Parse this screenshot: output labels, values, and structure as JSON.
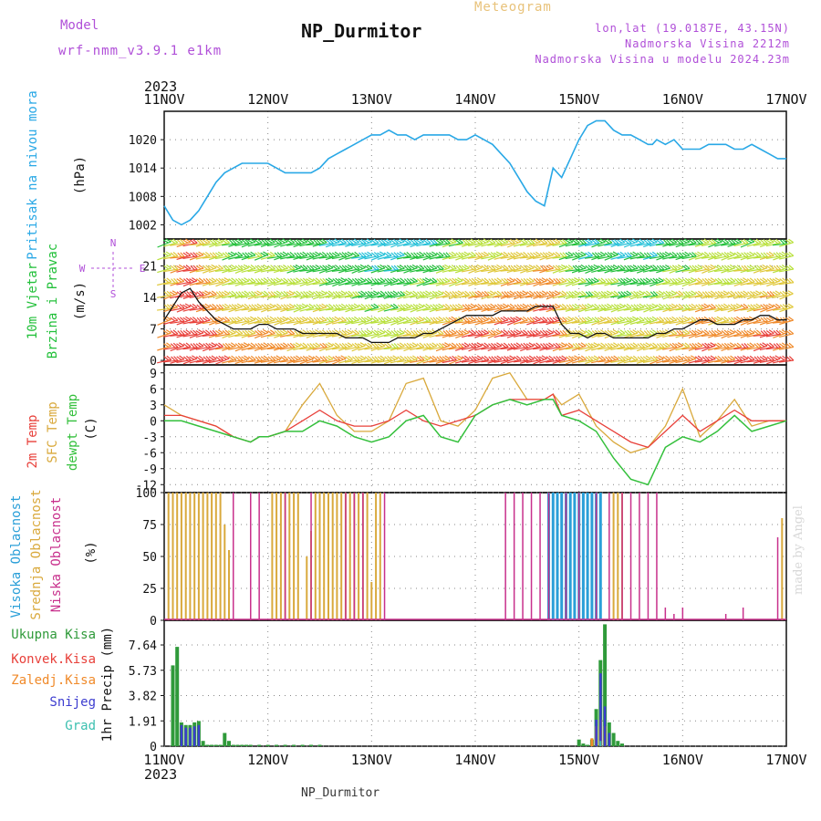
{
  "header": {
    "model_label": "Model",
    "model_version": "wrf-nmm_v3.9.1 e1km",
    "meteogram_label": "Meteogram",
    "station": "NP_Durmitor",
    "lonlat": "lon,lat (19.0187E, 43.15N)",
    "elevation": "Nadmorska Visina 2212m",
    "model_elevation": "Nadmorska Visina u modelu 2024.23m",
    "footer_station": "NP_Durmitor",
    "made_by": "made by Angel"
  },
  "axis": {
    "year": "2023",
    "date_ticks": [
      "11NOV",
      "12NOV",
      "13NOV",
      "14NOV",
      "15NOV",
      "16NOV",
      "17NOV"
    ]
  },
  "colors": {
    "pressure": "#29a8e6",
    "temp2m": "#e8403a",
    "sfc": "#d9a93c",
    "dew": "#34c03c",
    "high_cloud": "#2a9fd8",
    "mid_cloud": "#d9a93c",
    "low_cloud": "#c8308c",
    "total_precip": "#2f9a3a",
    "conv_precip": "#e8403a",
    "frz_precip": "#f08a2a",
    "snow": "#3c3ccf",
    "hail": "#3cc0b0",
    "axis_pink": "#c8308c",
    "wind_label": "#22c03a",
    "wind_dir_label": "#b04fd8"
  },
  "chart_data": [
    {
      "type": "line",
      "title": "",
      "ylabel_parts": [
        "Pritisak na nivou mora",
        "(hPa)"
      ],
      "yticks": [
        1002,
        1008,
        1014,
        1020
      ],
      "ylim": [
        999,
        1026
      ],
      "xlim": [
        0,
        144
      ],
      "series": [
        {
          "name": "Pritisak na nivou mora",
          "x": [
            0,
            2,
            4,
            6,
            8,
            10,
            12,
            14,
            16,
            18,
            20,
            22,
            24,
            26,
            28,
            30,
            32,
            34,
            36,
            38,
            40,
            42,
            44,
            46,
            48,
            50,
            52,
            54,
            56,
            58,
            60,
            62,
            64,
            66,
            68,
            70,
            72,
            74,
            76,
            78,
            80,
            82,
            84,
            86,
            88,
            90,
            92,
            94,
            96,
            98,
            100,
            102,
            104,
            106,
            108,
            110,
            112,
            113,
            114,
            116,
            118,
            120,
            122,
            124,
            126,
            128,
            130,
            132,
            134,
            136,
            138,
            140,
            142,
            144
          ],
          "values": [
            1006,
            1003,
            1002,
            1003,
            1005,
            1008,
            1011,
            1013,
            1014,
            1015,
            1015,
            1015,
            1015,
            1014,
            1013,
            1013,
            1013,
            1013,
            1014,
            1016,
            1017,
            1018,
            1019,
            1020,
            1021,
            1021,
            1022,
            1021,
            1021,
            1020,
            1021,
            1021,
            1021,
            1021,
            1020,
            1020,
            1021,
            1020,
            1019,
            1017,
            1015,
            1012,
            1009,
            1007,
            1006,
            1014,
            1012,
            1016,
            1020,
            1023,
            1024,
            1024,
            1022,
            1021,
            1021,
            1020,
            1019,
            1019,
            1020,
            1019,
            1020,
            1018,
            1018,
            1018,
            1019,
            1019,
            1019,
            1018,
            1018,
            1019,
            1018,
            1017,
            1016,
            1016
          ]
        }
      ]
    },
    {
      "type": "line",
      "title": "",
      "ylabel_parts": [
        "10m Vjetar",
        "Brzina i Pravac",
        "(m/s)"
      ],
      "direction_legend": [
        "N",
        "E",
        "S",
        "W"
      ],
      "yticks": [
        0,
        7,
        14,
        21
      ],
      "ylim": [
        -1,
        27
      ],
      "xlim": [
        0,
        144
      ],
      "series": [
        {
          "name": "10m Vjetar Brzina",
          "x": [
            0,
            2,
            4,
            6,
            8,
            10,
            12,
            14,
            16,
            18,
            20,
            22,
            24,
            26,
            28,
            30,
            32,
            34,
            36,
            38,
            40,
            42,
            44,
            46,
            48,
            50,
            52,
            54,
            56,
            58,
            60,
            62,
            64,
            66,
            68,
            70,
            72,
            74,
            76,
            78,
            80,
            82,
            84,
            86,
            88,
            90,
            92,
            94,
            96,
            98,
            100,
            102,
            104,
            106,
            108,
            110,
            112,
            114,
            116,
            118,
            120,
            122,
            124,
            126,
            128,
            130,
            132,
            134,
            136,
            138,
            140,
            142,
            144
          ],
          "values": [
            9,
            12,
            15,
            16,
            13,
            11,
            9,
            8,
            7,
            7,
            7,
            8,
            8,
            7,
            7,
            7,
            6,
            6,
            6,
            6,
            6,
            5,
            5,
            5,
            4,
            4,
            4,
            5,
            5,
            5,
            6,
            6,
            7,
            8,
            9,
            10,
            10,
            10,
            10,
            11,
            11,
            11,
            11,
            12,
            12,
            12,
            8,
            6,
            6,
            5,
            6,
            6,
            5,
            5,
            5,
            5,
            5,
            6,
            6,
            7,
            7,
            8,
            9,
            9,
            8,
            8,
            8,
            9,
            9,
            10,
            10,
            9,
            9
          ]
        }
      ],
      "barb_color_scale": [
        "#7a1fc8",
        "#2a7ae0",
        "#22c0d8",
        "#22c03a",
        "#b8e03a",
        "#e0c83a",
        "#f08a2a",
        "#e8403a"
      ]
    },
    {
      "type": "line",
      "title": "",
      "ylabel_parts": [
        "2m Temp",
        "SFC Temp",
        "dewpt Temp",
        "(C)"
      ],
      "yticks": [
        -12,
        -9,
        -6,
        -3,
        0,
        3,
        6,
        9
      ],
      "ylim": [
        -13.5,
        10.5
      ],
      "xlim": [
        0,
        144
      ],
      "series": [
        {
          "name": "2m Temp",
          "x": [
            0,
            4,
            8,
            12,
            16,
            20,
            22,
            24,
            28,
            32,
            36,
            40,
            44,
            48,
            52,
            56,
            60,
            64,
            68,
            72,
            76,
            80,
            84,
            88,
            90,
            92,
            96,
            100,
            104,
            108,
            112,
            116,
            120,
            124,
            128,
            132,
            136,
            140,
            144
          ],
          "values": [
            1,
            1,
            0,
            -1,
            -3,
            -4,
            -3,
            -3,
            -2,
            0,
            2,
            0,
            -1,
            -1,
            0,
            2,
            0,
            -1,
            0,
            1,
            3,
            4,
            4,
            4,
            5,
            1,
            2,
            0,
            -2,
            -4,
            -5,
            -2,
            1,
            -2,
            0,
            2,
            0,
            0,
            0
          ]
        },
        {
          "name": "SFC Temp",
          "x": [
            0,
            4,
            8,
            12,
            16,
            20,
            22,
            24,
            28,
            32,
            36,
            40,
            44,
            48,
            52,
            56,
            60,
            64,
            68,
            72,
            76,
            80,
            84,
            88,
            90,
            92,
            96,
            100,
            104,
            108,
            112,
            116,
            120,
            124,
            128,
            132,
            136,
            140,
            144
          ],
          "values": [
            3,
            1,
            0,
            -1,
            -3,
            -4,
            -3,
            -3,
            -2,
            3,
            7,
            1,
            -2,
            -2,
            0,
            7,
            8,
            0,
            -1,
            2,
            8,
            9,
            4,
            4,
            5,
            3,
            5,
            -1,
            -4,
            -6,
            -5,
            -1,
            6,
            -3,
            0,
            4,
            -1,
            0,
            0
          ]
        },
        {
          "name": "dewpt Temp",
          "x": [
            0,
            4,
            8,
            12,
            16,
            20,
            22,
            24,
            28,
            32,
            36,
            40,
            44,
            48,
            52,
            56,
            60,
            64,
            68,
            72,
            76,
            80,
            84,
            88,
            90,
            92,
            96,
            100,
            104,
            108,
            112,
            116,
            120,
            124,
            128,
            132,
            136,
            140,
            144
          ],
          "values": [
            0,
            0,
            -1,
            -2,
            -3,
            -4,
            -3,
            -3,
            -2,
            -2,
            0,
            -1,
            -3,
            -4,
            -3,
            0,
            1,
            -3,
            -4,
            1,
            3,
            4,
            3,
            4,
            4,
            1,
            0,
            -2,
            -7,
            -11,
            -12,
            -5,
            -3,
            -4,
            -2,
            1,
            -2,
            -1,
            0
          ]
        }
      ]
    },
    {
      "type": "bar",
      "title": "",
      "ylabel_parts": [
        "Visoka Oblacnost",
        "Srednja Oblacnost",
        "Niska Oblacnost",
        "(%)"
      ],
      "yticks": [
        0,
        25,
        50,
        75,
        100
      ],
      "ylim": [
        0,
        100
      ],
      "xlim": [
        0,
        144
      ],
      "series": [
        {
          "name": "Visoka Oblacnost",
          "x": [
            89,
            90,
            91,
            92,
            93,
            94,
            95,
            96,
            97,
            98,
            99,
            100,
            101
          ],
          "values": [
            100,
            100,
            100,
            100,
            100,
            100,
            100,
            100,
            100,
            100,
            100,
            100,
            100
          ]
        },
        {
          "name": "Srednja Oblacnost",
          "x": [
            1,
            2,
            3,
            4,
            5,
            6,
            7,
            8,
            9,
            10,
            11,
            12,
            13,
            14,
            15,
            25,
            26,
            27,
            28,
            29,
            30,
            31,
            33,
            34,
            35,
            36,
            37,
            38,
            39,
            40,
            41,
            42,
            43,
            44,
            45,
            46,
            47,
            48,
            49,
            50,
            104,
            105,
            106,
            143
          ],
          "values": [
            100,
            100,
            100,
            100,
            100,
            100,
            100,
            100,
            100,
            100,
            100,
            100,
            100,
            75,
            55,
            100,
            100,
            100,
            100,
            100,
            100,
            100,
            50,
            70,
            100,
            100,
            100,
            100,
            100,
            100,
            100,
            100,
            100,
            100,
            100,
            100,
            100,
            30,
            100,
            100,
            100,
            100,
            100,
            80
          ]
        },
        {
          "name": "Niska Oblacnost",
          "x": [
            16,
            20,
            22,
            28,
            34,
            42,
            44,
            46,
            51,
            79,
            81,
            83,
            85,
            87,
            89,
            93,
            96,
            100,
            103,
            106,
            108,
            110,
            112,
            114,
            116,
            118,
            120,
            130,
            134,
            142
          ],
          "values": [
            100,
            100,
            100,
            100,
            100,
            100,
            100,
            100,
            100,
            100,
            100,
            100,
            100,
            100,
            100,
            100,
            100,
            100,
            100,
            100,
            100,
            100,
            100,
            100,
            10,
            5,
            10,
            5,
            10,
            65
          ]
        }
      ]
    },
    {
      "type": "bar",
      "title": "",
      "ylabel_parts": [
        "1hr Precip (mm)"
      ],
      "legend": [
        "Ukupna Kisa",
        "Konvek.Kisa",
        "Zaledj.Kisa",
        "Snijeg",
        "Grad"
      ],
      "yticks": [
        0,
        1.91,
        3.82,
        5.73,
        7.64
      ],
      "ylim": [
        0,
        9.5
      ],
      "xlim": [
        0,
        144
      ],
      "series": [
        {
          "name": "Ukupna Kisa",
          "x": [
            2,
            3,
            4,
            5,
            6,
            7,
            8,
            9,
            10,
            11,
            12,
            13,
            14,
            15,
            16,
            17,
            18,
            19,
            20,
            22,
            24,
            26,
            28,
            30,
            32,
            34,
            36,
            96,
            97,
            98,
            99,
            100,
            101,
            102,
            103,
            104,
            105,
            106
          ],
          "values": [
            6.1,
            7.5,
            1.8,
            1.6,
            1.6,
            1.8,
            1.9,
            0.4,
            0.1,
            0.1,
            0.1,
            0.1,
            1.0,
            0.4,
            0.1,
            0.1,
            0.1,
            0.1,
            0.1,
            0.1,
            0.1,
            0.1,
            0.1,
            0.1,
            0.1,
            0.1,
            0.1,
            0.5,
            0.2,
            0.1,
            0.5,
            2.8,
            6.5,
            9.2,
            1.8,
            1.0,
            0.4,
            0.2
          ]
        },
        {
          "name": "Konvek.Kisa",
          "x": [
            101,
            102
          ],
          "values": [
            1.2,
            1.0
          ]
        },
        {
          "name": "Zaledj.Kisa",
          "x": [
            99,
            100,
            101,
            102
          ],
          "values": [
            0.6,
            1.5,
            2.0,
            1.5
          ]
        },
        {
          "name": "Snijeg",
          "x": [
            4,
            5,
            6,
            7,
            8,
            100,
            101,
            102,
            103
          ],
          "values": [
            1.6,
            1.4,
            1.4,
            1.5,
            1.6,
            2.0,
            5.5,
            3.0,
            1.0
          ]
        },
        {
          "name": "Grad",
          "x": [
            101
          ],
          "values": [
            0.4
          ]
        }
      ]
    }
  ]
}
